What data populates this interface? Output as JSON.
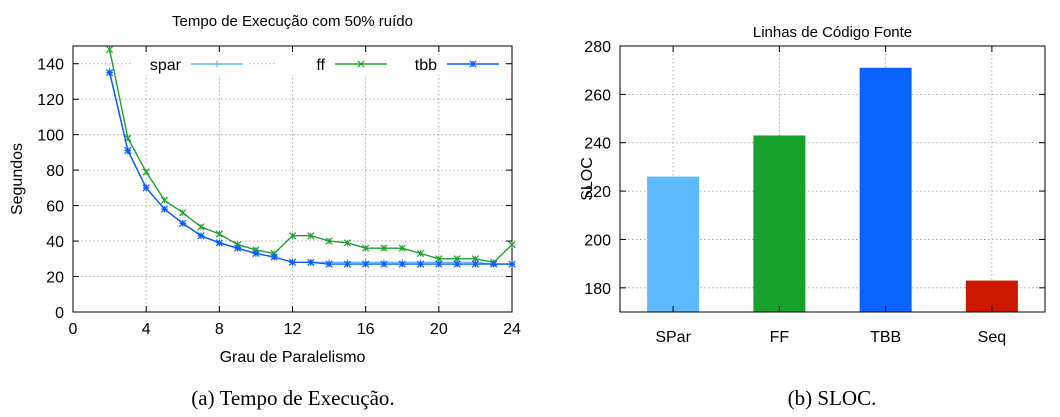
{
  "chart_data": [
    {
      "type": "line",
      "title": "Tempo de Execução com 50% ruído",
      "xlabel": "Grau de Paralelismo",
      "ylabel": "Segundos",
      "xlim": [
        0,
        24
      ],
      "ylim": [
        0,
        150
      ],
      "xticks": [
        0,
        4,
        8,
        12,
        16,
        20,
        24
      ],
      "yticks": [
        0,
        20,
        40,
        60,
        80,
        100,
        120,
        140
      ],
      "grid": true,
      "legend": "top, horizontal",
      "x": [
        2,
        3,
        4,
        5,
        6,
        7,
        8,
        9,
        10,
        11,
        12,
        13,
        14,
        15,
        16,
        17,
        18,
        19,
        20,
        21,
        22,
        23,
        24
      ],
      "series": [
        {
          "name": "spar",
          "color": "#64b8ff",
          "marker": "plus",
          "values": [
            136,
            91,
            70,
            58,
            50,
            43,
            39,
            36,
            33,
            31,
            28,
            28,
            28,
            28,
            28,
            28,
            28,
            28,
            28,
            28,
            28,
            27,
            27
          ]
        },
        {
          "name": "ff",
          "color": "#1fa031",
          "marker": "x",
          "values": [
            148,
            98,
            79,
            63,
            56,
            48,
            44,
            38,
            35,
            33,
            43,
            43,
            40,
            39,
            36,
            36,
            36,
            33,
            30,
            30,
            30,
            28,
            38
          ]
        },
        {
          "name": "tbb",
          "color": "#0a5cff",
          "marker": "star",
          "values": [
            135,
            91,
            70,
            58,
            50,
            43,
            39,
            36,
            33,
            31,
            28,
            28,
            27,
            27,
            27,
            27,
            27,
            27,
            27,
            27,
            27,
            27,
            27
          ]
        }
      ]
    },
    {
      "type": "bar",
      "title": "Linhas de Código Fonte",
      "xlabel": "",
      "ylabel": "SLOC",
      "ylim": [
        170,
        280
      ],
      "yticks": [
        180,
        200,
        220,
        240,
        260,
        280
      ],
      "grid": true,
      "categories": [
        "SPar",
        "FF",
        "TBB",
        "Seq"
      ],
      "values": [
        226,
        243,
        271,
        183
      ],
      "colors": [
        "#5fb9ff",
        "#17a02c",
        "#0a62ff",
        "#cc1800"
      ]
    }
  ],
  "captions": [
    "(a)  Tempo de Execução.",
    "(b)  SLOC."
  ]
}
